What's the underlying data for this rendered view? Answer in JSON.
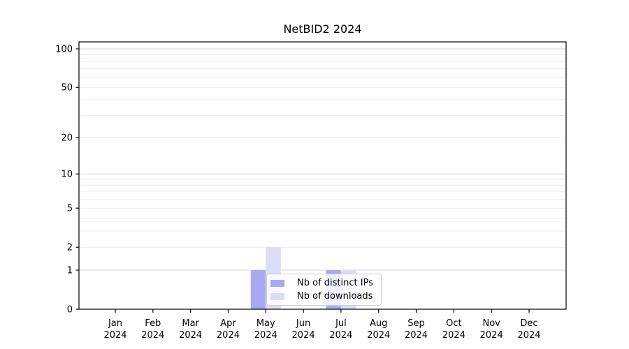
{
  "chart_data": {
    "type": "bar",
    "title": "NetBID2 2024",
    "categories": [
      "Jan",
      "Feb",
      "Mar",
      "Apr",
      "May",
      "Jun",
      "Jul",
      "Aug",
      "Sep",
      "Oct",
      "Nov",
      "Dec"
    ],
    "category_year": "2024",
    "series": [
      {
        "name": "Nb of distinct IPs",
        "color": "#a9a9f3",
        "values": [
          0,
          0,
          0,
          0,
          1,
          0,
          1,
          0,
          0,
          0,
          0,
          0
        ]
      },
      {
        "name": "Nb of downloads",
        "color": "#dcdcf8",
        "values": [
          0,
          0,
          0,
          0,
          2,
          0,
          1,
          0,
          0,
          0,
          0,
          0
        ]
      }
    ],
    "yscale": "log10(1+x)",
    "ylim": [
      0,
      100
    ],
    "yticks": [
      0,
      1,
      2,
      5,
      10,
      20,
      50,
      100
    ],
    "grid": true,
    "grid_major_values": [
      1,
      10,
      100
    ],
    "grid_minor_values": [
      2,
      3,
      4,
      5,
      6,
      7,
      8,
      9,
      20,
      30,
      40,
      50,
      60,
      70,
      80,
      90
    ],
    "grid_major_color": "#d6d6d6",
    "grid_minor_color": "#ececec",
    "axis_color": "#000000",
    "legend_position": "lower-center"
  }
}
